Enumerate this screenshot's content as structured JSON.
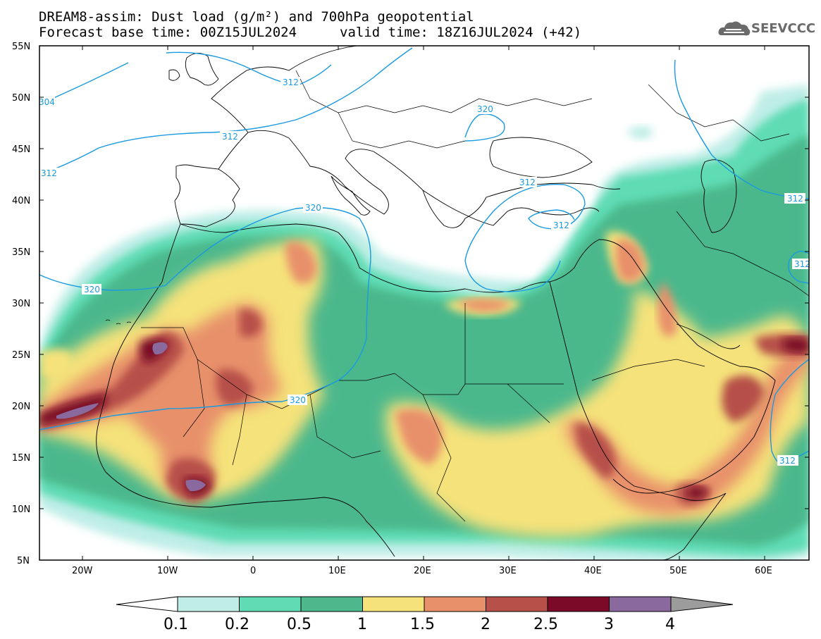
{
  "header": {
    "title_line1": "DREAM8-assim: Dust load (g/m²) and 700hPa geopotential",
    "title_line2": "Forecast base time: 00Z15JUL2024",
    "valid_time": "valid time: 18Z16JUL2024 (+42)",
    "logo_text": "SEEVCCC"
  },
  "map": {
    "lat_labels": [
      "55N",
      "50N",
      "45N",
      "40N",
      "35N",
      "30N",
      "25N",
      "20N",
      "15N",
      "10N",
      "5N"
    ],
    "lon_labels": [
      "20W",
      "10W",
      "0",
      "10E",
      "20E",
      "30E",
      "40E",
      "50E",
      "60E"
    ],
    "contour_labels": [
      "304",
      "312",
      "312",
      "320",
      "320",
      "320",
      "320",
      "312",
      "312",
      "312",
      "312",
      "312",
      "312"
    ],
    "colors": {
      "contour": "#1a9ae0",
      "coast": "#000000"
    }
  },
  "colorbar": {
    "labels": [
      "0.1",
      "0.2",
      "0.5",
      "1",
      "1.5",
      "2",
      "2.5",
      "3",
      "4"
    ],
    "colors": [
      "#ffffff",
      "#bfeee6",
      "#5fdcb4",
      "#4cb88c",
      "#f5e27a",
      "#e8906a",
      "#b65048",
      "#7a0a28",
      "#8a6a9e",
      "#9c9c9c"
    ]
  }
}
